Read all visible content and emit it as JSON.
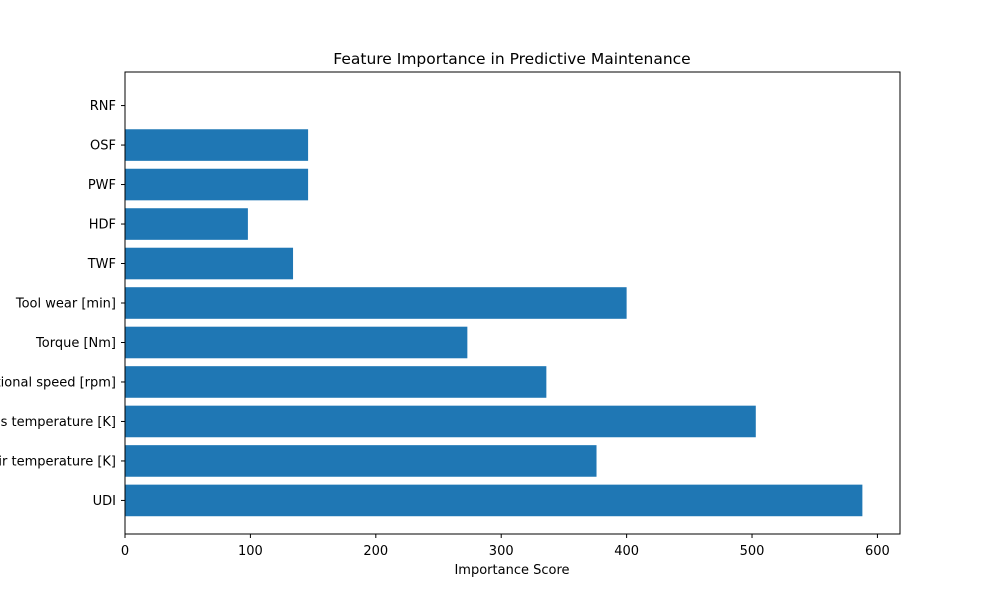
{
  "chart_data": {
    "type": "bar",
    "orientation": "horizontal",
    "title": "Feature Importance in Predictive Maintenance",
    "xlabel": "Importance Score",
    "ylabel": "",
    "categories": [
      "UDI",
      "Air temperature [K]",
      "Process temperature [K]",
      "Rotational speed [rpm]",
      "Torque [Nm]",
      "Tool wear [min]",
      "TWF",
      "HDF",
      "PWF",
      "OSF",
      "RNF"
    ],
    "values": [
      588,
      376,
      503,
      336,
      273,
      400,
      134,
      98,
      146,
      146,
      0
    ],
    "xlim": [
      0,
      618
    ],
    "xticks": [
      0,
      100,
      200,
      300,
      400,
      500,
      600
    ],
    "grid": false,
    "legend": "none",
    "bar_color": "#1f77b4"
  }
}
